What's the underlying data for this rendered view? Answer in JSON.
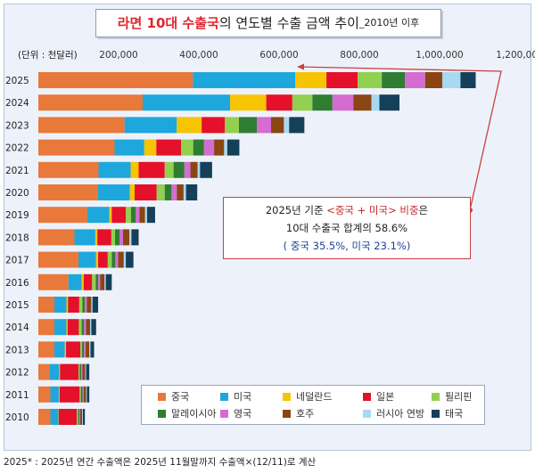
{
  "header": {
    "title_highlight": "라면 10대 수출국",
    "title_main": "의 연도별 수출 금액 추이",
    "title_suffix": "_2010년 이후"
  },
  "callout": {
    "line1_pre": "2025년 기준 ",
    "line1_highlight": "<중국 + 미국> 비중",
    "line1_post": "은",
    "line2": "10대 수출국 합계의 58.6%",
    "line3": "( 중국 35.5%, 미국 23.1%)"
  },
  "footnote": "2025* : 2025년 연간 수출액은 2025년 11월말까지 수출액×(12/11)로 계산",
  "chart_data": {
    "type": "bar",
    "orientation": "horizontal",
    "stacked": true,
    "unit_label": "(단위 : 천달러)",
    "xlim": [
      0,
      1200000
    ],
    "x_ticks": [
      "200,000",
      "400,000",
      "600,000",
      "800,000",
      "1,000,000",
      "1,200,000"
    ],
    "x_tick_values": [
      200000,
      400000,
      600000,
      800000,
      1000000,
      1200000
    ],
    "legend_position": "bottom-right",
    "categories": [
      "2025",
      "2024",
      "2023",
      "2022",
      "2021",
      "2020",
      "2019",
      "2018",
      "2017",
      "2016",
      "2015",
      "2014",
      "2013",
      "2012",
      "2011",
      "2010"
    ],
    "series": [
      {
        "name": "중국",
        "color": "#e8793a",
        "values": [
          385000,
          260000,
          215000,
          190000,
          150000,
          148000,
          122000,
          90000,
          100000,
          75000,
          40000,
          40000,
          40000,
          28000,
          30000,
          30000
        ]
      },
      {
        "name": "미국",
        "color": "#1ea7dc",
        "values": [
          255000,
          218000,
          130000,
          74000,
          80000,
          80000,
          55000,
          52000,
          44000,
          33000,
          30000,
          30000,
          26000,
          24000,
          21000,
          20000
        ]
      },
      {
        "name": "네덜란드",
        "color": "#f6c400",
        "values": [
          78000,
          90000,
          62000,
          30000,
          20000,
          12000,
          6000,
          5000,
          5000,
          5000,
          4000,
          3000,
          3000,
          2000,
          2000,
          1000
        ]
      },
      {
        "name": "일본",
        "color": "#e5102a",
        "values": [
          78000,
          65000,
          58000,
          62000,
          65000,
          55000,
          35000,
          35000,
          24000,
          21000,
          28000,
          28000,
          36000,
          46000,
          50000,
          45000
        ]
      },
      {
        "name": "필리핀",
        "color": "#92d050",
        "values": [
          60000,
          50000,
          35000,
          30000,
          22000,
          20000,
          13000,
          9000,
          10000,
          9000,
          8000,
          7000,
          4000,
          3000,
          3000,
          3000
        ]
      },
      {
        "name": "말레이시아",
        "color": "#2e7d32",
        "values": [
          58000,
          50000,
          45000,
          27000,
          27000,
          17000,
          12000,
          12000,
          9000,
          6000,
          6000,
          6000,
          5000,
          4000,
          4000,
          3000
        ]
      },
      {
        "name": "영국",
        "color": "#d56cd1",
        "values": [
          50000,
          52000,
          35000,
          25000,
          15000,
          13000,
          9000,
          8000,
          7000,
          5000,
          5000,
          5000,
          4000,
          3000,
          3000,
          2000
        ]
      },
      {
        "name": "호주",
        "color": "#8b4513",
        "values": [
          43000,
          45000,
          32000,
          25000,
          18000,
          17000,
          14000,
          16000,
          14000,
          11000,
          11000,
          10000,
          9000,
          7000,
          6000,
          5000
        ]
      },
      {
        "name": "러시아 연방",
        "color": "#a9d8f2",
        "values": [
          45000,
          20000,
          13000,
          8000,
          6000,
          6000,
          5000,
          5000,
          5000,
          3000,
          3000,
          3000,
          3000,
          2000,
          2000,
          2000
        ]
      },
      {
        "name": "태국",
        "color": "#163f5a",
        "values": [
          38000,
          50000,
          38000,
          30000,
          30000,
          28000,
          20000,
          18000,
          19000,
          15000,
          14000,
          12000,
          9000,
          8000,
          6000,
          5000
        ]
      }
    ]
  }
}
